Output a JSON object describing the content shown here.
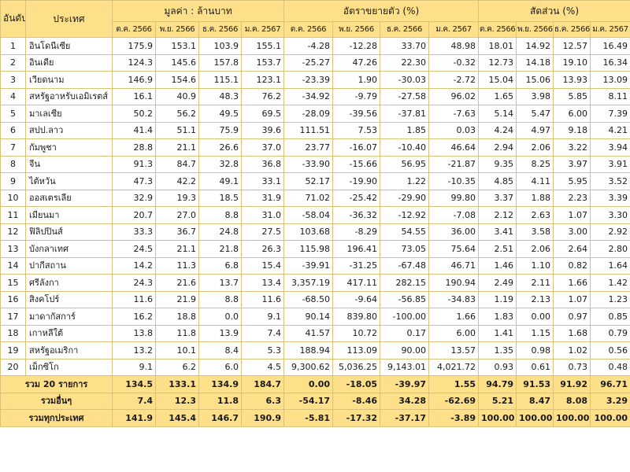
{
  "headers": {
    "rank": "อันดับที่",
    "country": "ประเทศ",
    "value_group": "มูลค่า : ล้านบาท",
    "growth_group": "อัตราขยายตัว (%)",
    "share_group": "สัดส่วน (%)",
    "months": [
      "ต.ค. 2566",
      "พ.ย. 2566",
      "ธ.ค. 2566",
      "ม.ค. 2567"
    ]
  },
  "rows": [
    {
      "rank": "1",
      "country": "อินโดนีเซีย",
      "cells": [
        "175.9",
        "153.1",
        "103.9",
        "155.1",
        "-4.28",
        "-12.28",
        "33.70",
        "48.98",
        "18.01",
        "14.92",
        "12.57",
        "16.49"
      ]
    },
    {
      "rank": "2",
      "country": "อินเดีย",
      "cells": [
        "124.3",
        "145.6",
        "157.8",
        "153.7",
        "-25.27",
        "47.26",
        "22.30",
        "-0.32",
        "12.73",
        "14.18",
        "19.10",
        "16.34"
      ]
    },
    {
      "rank": "3",
      "country": "เวียดนาม",
      "cells": [
        "146.9",
        "154.6",
        "115.1",
        "123.1",
        "-23.39",
        "1.90",
        "-30.03",
        "-2.72",
        "15.04",
        "15.06",
        "13.93",
        "13.09"
      ]
    },
    {
      "rank": "4",
      "country": "สหรัฐอาหรับเอมิเรตส์",
      "cells": [
        "16.1",
        "40.9",
        "48.3",
        "76.2",
        "-34.92",
        "-9.79",
        "-27.58",
        "96.02",
        "1.65",
        "3.98",
        "5.85",
        "8.11"
      ]
    },
    {
      "rank": "5",
      "country": "มาเลเซีย",
      "cells": [
        "50.2",
        "56.2",
        "49.5",
        "69.5",
        "-28.09",
        "-39.56",
        "-37.81",
        "-7.63",
        "5.14",
        "5.47",
        "6.00",
        "7.39"
      ]
    },
    {
      "rank": "6",
      "country": "สปป.ลาว",
      "cells": [
        "41.4",
        "51.1",
        "75.9",
        "39.6",
        "111.51",
        "7.53",
        "1.85",
        "0.03",
        "4.24",
        "4.97",
        "9.18",
        "4.21"
      ]
    },
    {
      "rank": "7",
      "country": "กัมพูชา",
      "cells": [
        "28.8",
        "21.1",
        "26.6",
        "37.0",
        "23.77",
        "-16.07",
        "-10.40",
        "46.64",
        "2.94",
        "2.06",
        "3.22",
        "3.94"
      ]
    },
    {
      "rank": "8",
      "country": "จีน",
      "cells": [
        "91.3",
        "84.7",
        "32.8",
        "36.8",
        "-33.90",
        "-15.66",
        "56.95",
        "-21.87",
        "9.35",
        "8.25",
        "3.97",
        "3.91"
      ]
    },
    {
      "rank": "9",
      "country": "ไต้หวัน",
      "cells": [
        "47.3",
        "42.2",
        "49.1",
        "33.1",
        "52.17",
        "-19.90",
        "1.22",
        "-10.35",
        "4.85",
        "4.11",
        "5.95",
        "3.52"
      ]
    },
    {
      "rank": "10",
      "country": "ออสเตรเลีย",
      "cells": [
        "32.9",
        "19.3",
        "18.5",
        "31.9",
        "71.02",
        "-25.42",
        "-29.90",
        "99.80",
        "3.37",
        "1.88",
        "2.23",
        "3.39"
      ]
    },
    {
      "rank": "11",
      "country": "เมียนมา",
      "cells": [
        "20.7",
        "27.0",
        "8.8",
        "31.0",
        "-58.04",
        "-36.32",
        "-12.92",
        "-7.08",
        "2.12",
        "2.63",
        "1.07",
        "3.30"
      ]
    },
    {
      "rank": "12",
      "country": "ฟิลิปปินส์",
      "cells": [
        "33.3",
        "36.7",
        "24.8",
        "27.5",
        "103.68",
        "-8.29",
        "54.55",
        "36.00",
        "3.41",
        "3.58",
        "3.00",
        "2.92"
      ]
    },
    {
      "rank": "13",
      "country": "บังกลาเทศ",
      "cells": [
        "24.5",
        "21.1",
        "21.8",
        "26.3",
        "115.98",
        "196.41",
        "73.05",
        "75.64",
        "2.51",
        "2.06",
        "2.64",
        "2.80"
      ]
    },
    {
      "rank": "14",
      "country": "ปากีสถาน",
      "cells": [
        "14.2",
        "11.3",
        "6.8",
        "15.4",
        "-39.91",
        "-31.25",
        "-67.48",
        "46.71",
        "1.46",
        "1.10",
        "0.82",
        "1.64"
      ]
    },
    {
      "rank": "15",
      "country": "ศรีลังกา",
      "cells": [
        "24.3",
        "21.6",
        "13.7",
        "13.4",
        "3,357.19",
        "417.11",
        "282.15",
        "190.94",
        "2.49",
        "2.11",
        "1.66",
        "1.42"
      ]
    },
    {
      "rank": "16",
      "country": "สิงคโปร์",
      "cells": [
        "11.6",
        "21.9",
        "8.8",
        "11.6",
        "-68.50",
        "-9.64",
        "-56.85",
        "-34.83",
        "1.19",
        "2.13",
        "1.07",
        "1.23"
      ]
    },
    {
      "rank": "17",
      "country": "มาดากัสการ์",
      "cells": [
        "16.2",
        "18.8",
        "0.0",
        "9.1",
        "90.14",
        "839.80",
        "-100.00",
        "1.66",
        "1.83",
        "0.00",
        "0.97",
        "0.85"
      ]
    },
    {
      "rank": "18",
      "country": "เกาหลีใต้",
      "cells": [
        "13.8",
        "11.8",
        "13.9",
        "7.4",
        "41.57",
        "10.72",
        "0.17",
        "6.00",
        "1.41",
        "1.15",
        "1.68",
        "0.79"
      ]
    },
    {
      "rank": "19",
      "country": "สหรัฐอเมริกา",
      "cells": [
        "13.2",
        "10.1",
        "8.4",
        "5.3",
        "188.94",
        "113.09",
        "90.00",
        "13.57",
        "1.35",
        "0.98",
        "1.02",
        "0.56"
      ]
    },
    {
      "rank": "20",
      "country": "เม็กซิโก",
      "cells": [
        "9.1",
        "6.2",
        "6.0",
        "4.5",
        "9,300.62",
        "5,036.25",
        "9,143.01",
        "4,021.72",
        "0.93",
        "0.61",
        "0.73",
        "0.48"
      ]
    }
  ],
  "totals": [
    {
      "label": "รวม 20 รายการ",
      "cells": [
        "134.5",
        "133.1",
        "134.9",
        "184.7",
        "0.00",
        "-18.05",
        "-39.97",
        "1.55",
        "94.79",
        "91.53",
        "91.92",
        "96.71"
      ]
    },
    {
      "label": "รวมอื่นๆ",
      "cells": [
        "7.4",
        "12.3",
        "11.8",
        "6.3",
        "-54.17",
        "-8.46",
        "34.28",
        "-62.69",
        "5.21",
        "8.47",
        "8.08",
        "3.29"
      ]
    },
    {
      "label": "รวมทุกประเทศ",
      "cells": [
        "141.9",
        "145.4",
        "146.7",
        "190.9",
        "-5.81",
        "-17.32",
        "-37.17",
        "-3.89",
        "100.00",
        "100.00",
        "100.00",
        "100.00"
      ]
    }
  ],
  "colors": {
    "header_bg": "#ffe08a",
    "border": "#d9c27a"
  }
}
